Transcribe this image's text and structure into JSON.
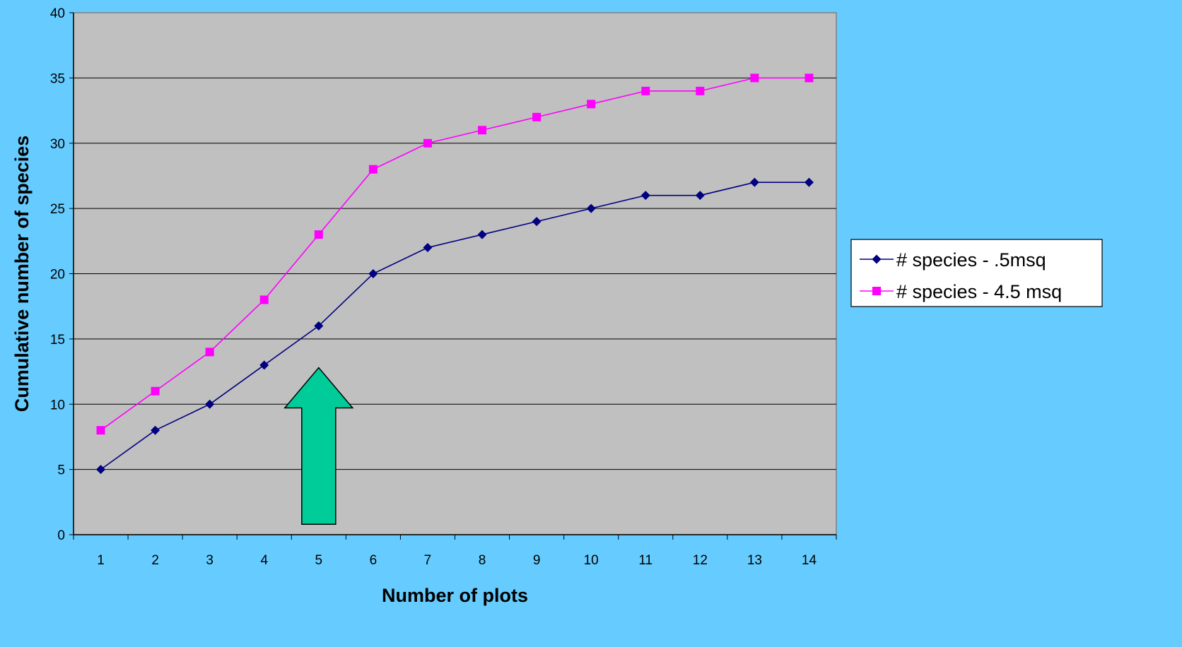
{
  "chart_data": {
    "type": "line",
    "title": "",
    "xlabel": "Number of plots",
    "ylabel": "Cumulative number of species",
    "x": [
      1,
      2,
      3,
      4,
      5,
      6,
      7,
      8,
      9,
      10,
      11,
      12,
      13,
      14
    ],
    "ylim": [
      0,
      40
    ],
    "yticks": [
      0,
      5,
      10,
      15,
      20,
      25,
      30,
      35,
      40
    ],
    "grid": "horizontal",
    "legend_position": "right",
    "plot_background": "#C0C0C0",
    "series": [
      {
        "name": "# species - .5msq",
        "color": "#000080",
        "marker": "diamond",
        "values": [
          5,
          8,
          10,
          13,
          16,
          20,
          22,
          23,
          24,
          25,
          26,
          26,
          27,
          27
        ]
      },
      {
        "name": "# species - 4.5 msq",
        "color": "#FF00FF",
        "marker": "square",
        "values": [
          8,
          11,
          14,
          18,
          23,
          28,
          30,
          31,
          32,
          33,
          34,
          34,
          35,
          35
        ]
      }
    ],
    "annotations": [
      {
        "type": "arrow-up",
        "color": "#00CC99",
        "x": 5,
        "y_from": 0.8,
        "y_to": 12.8
      }
    ]
  }
}
